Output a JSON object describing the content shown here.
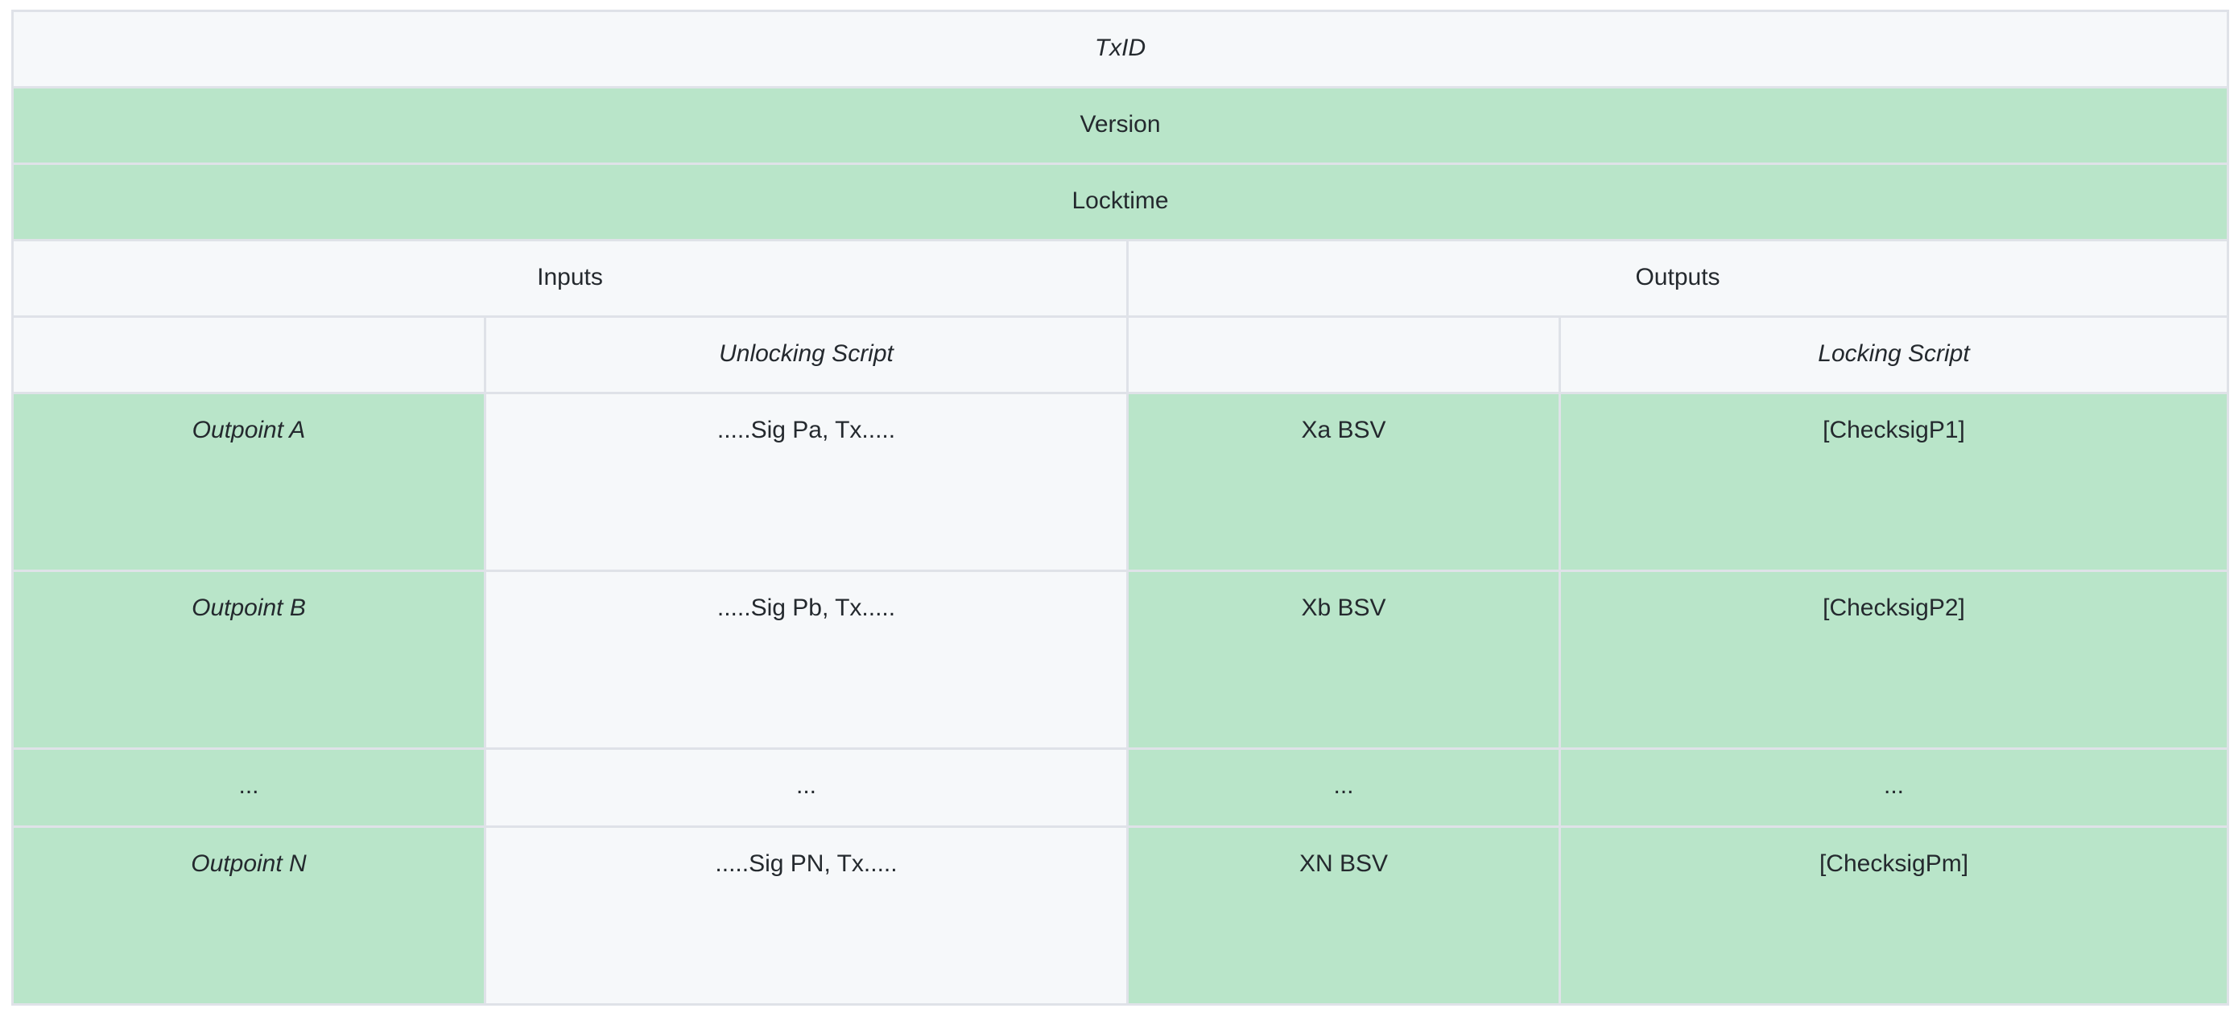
{
  "table": {
    "txid_label": "TxID",
    "version_label": "Version",
    "locktime_label": "Locktime",
    "inputs_label": "Inputs",
    "outputs_label": "Outputs",
    "unlocking_script_label": "Unlocking Script",
    "locking_script_label": "Locking Script",
    "rows": [
      {
        "outpoint": "Outpoint A",
        "unlocking_script": ".....Sig Pa, Tx.....",
        "amount": "Xa BSV",
        "locking_script": "[ChecksigP1]"
      },
      {
        "outpoint": "Outpoint B",
        "unlocking_script": ".....Sig Pb, Tx.....",
        "amount": "Xb BSV",
        "locking_script": "[ChecksigP2]"
      },
      {
        "outpoint": "...",
        "unlocking_script": "...",
        "amount": "...",
        "locking_script": "..."
      },
      {
        "outpoint": "Outpoint N",
        "unlocking_script": ".....Sig PN, Tx.....",
        "amount": "XN BSV",
        "locking_script": "[ChecksigPm]"
      }
    ],
    "colors": {
      "green": "#b9e5c9",
      "gray": "#f6f8fa",
      "border": "#dfe2e8",
      "text": "#24292e"
    }
  }
}
